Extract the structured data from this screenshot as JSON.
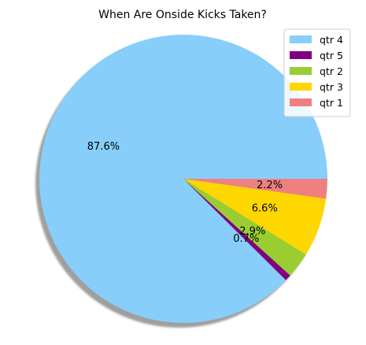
{
  "chart_data": {
    "type": "pie",
    "title": "When Are Onside Kicks Taken?",
    "start_angle_deg": 0,
    "direction": "counterclockwise",
    "shadow": true,
    "legend_position": "top-right",
    "slices": [
      {
        "label": "qtr 4",
        "value": 87.6,
        "pct_label": "87.6%",
        "color": "#87CEFA"
      },
      {
        "label": "qtr 5",
        "value": 0.7,
        "pct_label": "0.7%",
        "color": "#800080"
      },
      {
        "label": "qtr 2",
        "value": 2.9,
        "pct_label": "2.9%",
        "color": "#9ACD32"
      },
      {
        "label": "qtr 3",
        "value": 6.6,
        "pct_label": "6.6%",
        "color": "#FFD700"
      },
      {
        "label": "qtr 1",
        "value": 2.2,
        "pct_label": "2.2%",
        "color": "#F08080"
      }
    ]
  }
}
